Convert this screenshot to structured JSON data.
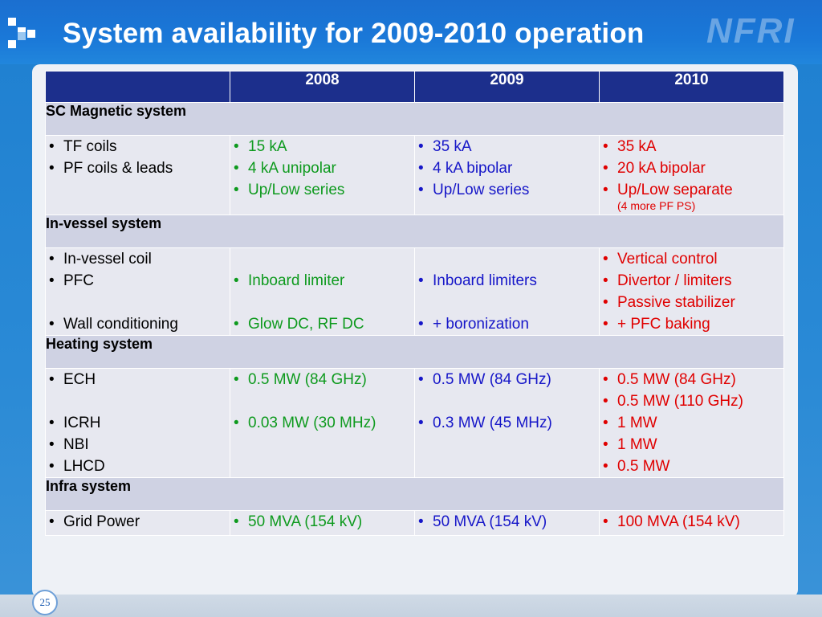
{
  "title": "System availability for 2009-2010 operation",
  "brand": "NFRI",
  "page_number": "25",
  "colors": {
    "header": "#1c2f8c",
    "section": "#cfd2e3",
    "cell": "#e7e8f0",
    "green": "#0e9a1e",
    "blue": "#1616c8",
    "red": "#e00000"
  },
  "table": {
    "headers": [
      "",
      "2008",
      "2009",
      "2010"
    ],
    "sections": [
      {
        "title": "SC Magnetic system",
        "col0": [
          "TF coils",
          "PF coils & leads"
        ],
        "col2008": [
          "15 kA",
          "4 kA unipolar",
          "Up/Low series"
        ],
        "col2009": [
          "35 kA",
          "4 kA bipolar",
          "Up/Low series"
        ],
        "col2010": [
          "35 kA",
          "20 kA bipolar",
          "Up/Low separate"
        ],
        "col2010_note": "(4 more PF PS)"
      },
      {
        "title": "In-vessel system",
        "col0": [
          "In-vessel coil",
          "PFC",
          "Wall conditioning"
        ],
        "col2008": [
          "Inboard limiter",
          "Glow DC, RF DC"
        ],
        "col2009": [
          "Inboard limiters",
          "+ boronization"
        ],
        "col2010": [
          "Vertical control",
          "Divertor / limiters",
          "Passive stabilizer",
          "+ PFC baking"
        ]
      },
      {
        "title": "Heating system",
        "col0": [
          "ECH",
          "ICRH",
          "NBI",
          "LHCD"
        ],
        "col2008": [
          "0.5 MW (84 GHz)",
          "0.03 MW (30 MHz)"
        ],
        "col2009": [
          "0.5 MW (84 GHz)",
          "0.3 MW (45 MHz)"
        ],
        "col2010": [
          "0.5 MW (84 GHz)",
          "0.5 MW (110 GHz)",
          "1 MW",
          "1 MW",
          "0.5 MW"
        ]
      },
      {
        "title": "Infra system",
        "col0": [
          "Grid Power"
        ],
        "col2008": [
          "50 MVA (154 kV)"
        ],
        "col2009": [
          "50 MVA (154 kV)"
        ],
        "col2010": [
          "100 MVA (154 kV)"
        ]
      }
    ]
  }
}
